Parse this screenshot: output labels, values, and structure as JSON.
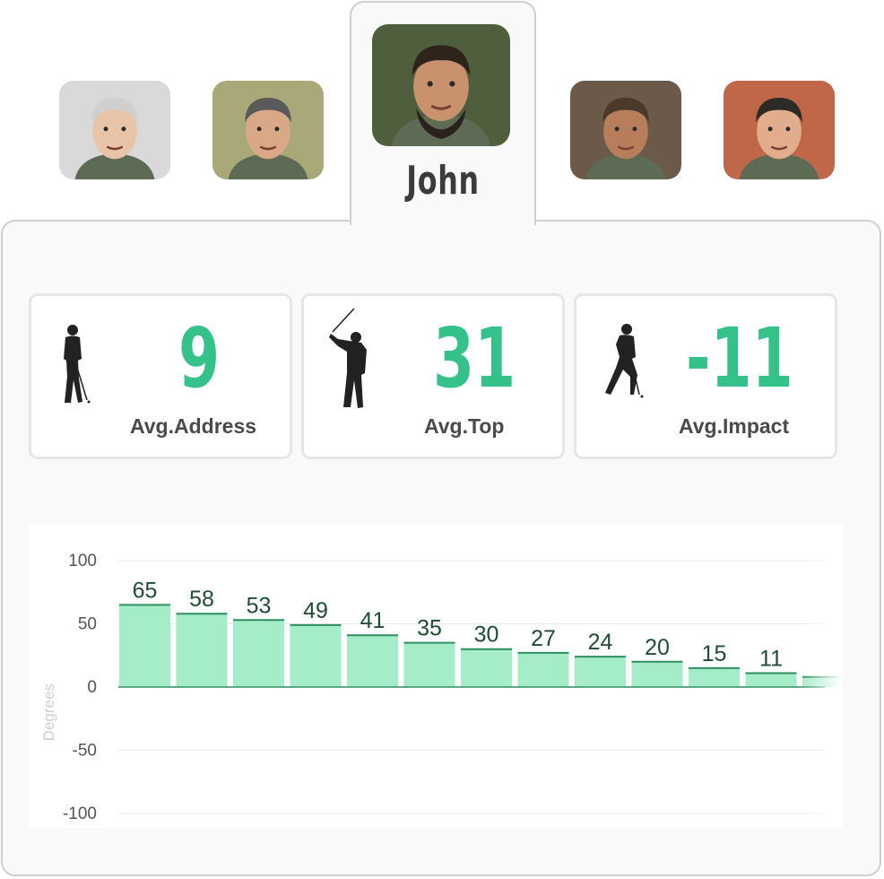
{
  "players": [
    {
      "id": "p1",
      "active": false,
      "skin": "#e8c4a8",
      "hair": "#cfcfcf",
      "bg": "#d9d9d9"
    },
    {
      "id": "p2",
      "active": false,
      "skin": "#d9a887",
      "hair": "#5a5a5a",
      "bg": "#a8a878"
    },
    {
      "id": "p3",
      "active": true,
      "skin": "#c9926f",
      "hair": "#2e241c",
      "bg": "#4f5e3c"
    },
    {
      "id": "p4",
      "active": false,
      "skin": "#b87e5c",
      "hair": "#4a3a2a",
      "bg": "#6b5a4a"
    },
    {
      "id": "p5",
      "active": false,
      "skin": "#e2ad8c",
      "hair": "#2e2a26",
      "bg": "#c0674a"
    }
  ],
  "selected_player": {
    "name": "John"
  },
  "stats": [
    {
      "value": "9",
      "label": "Avg.Address",
      "icon": "golfer-address-icon"
    },
    {
      "value": "31",
      "label": "Avg.Top",
      "icon": "golfer-top-icon"
    },
    {
      "value": "-11",
      "label": "Avg.Impact",
      "icon": "golfer-impact-icon"
    }
  ],
  "colors": {
    "accent": "#35c28a",
    "bar_fill": "#a5ecc9",
    "bar_edge": "#2f8f5f",
    "bar_label": "#1e4d33"
  },
  "chart_data": {
    "type": "bar",
    "ylabel": "Degrees",
    "ylim": [
      -100,
      100
    ],
    "yticks": [
      100,
      50,
      0,
      -50,
      -100
    ],
    "values": [
      65,
      58,
      53,
      49,
      41,
      35,
      30,
      27,
      24,
      20,
      15,
      11,
      8
    ],
    "labels": [
      "65",
      "58",
      "53",
      "49",
      "41",
      "35",
      "30",
      "27",
      "24",
      "20",
      "15",
      "11",
      ""
    ],
    "grid": true
  }
}
